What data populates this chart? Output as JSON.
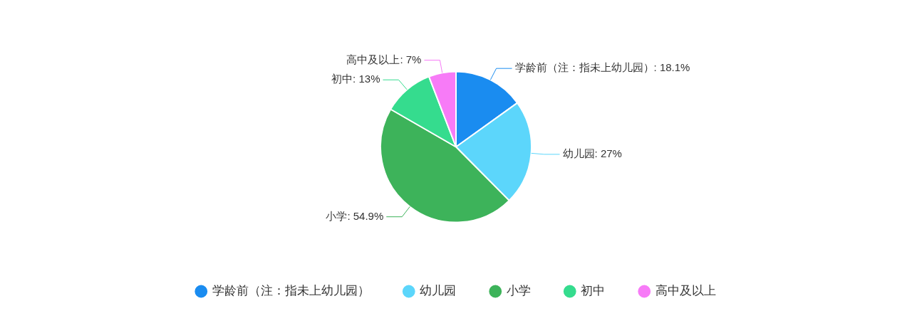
{
  "chart_data": {
    "type": "pie",
    "categories": [
      "学龄前（注：指未上幼儿园）",
      "幼儿园",
      "小学",
      "初中",
      "高中及以上"
    ],
    "values": [
      18.1,
      27,
      54.9,
      13,
      7
    ],
    "value_labels": [
      "学龄前（注：指未上幼儿园）: 18.1%",
      "幼儿园: 27%",
      "小学: 54.9%",
      "初中: 13%",
      "高中及以上: 7%"
    ],
    "colors": [
      "#1a8cf0",
      "#5cd6fb",
      "#3db35a",
      "#35dc8e",
      "#f77bf7"
    ],
    "legend": "bottom"
  }
}
